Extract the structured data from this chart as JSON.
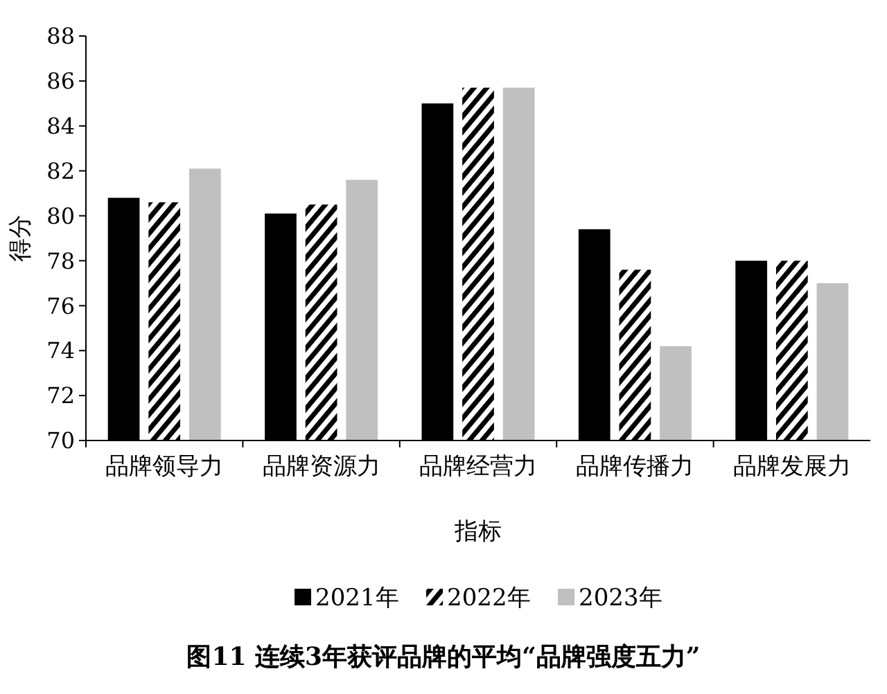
{
  "chart_data": {
    "type": "bar",
    "title": "图11 连续3年获评品牌的平均“品牌强度五力”",
    "xlabel": "指标",
    "ylabel": "得分",
    "categories": [
      "品牌领导力",
      "品牌资源力",
      "品牌经营力",
      "品牌传播力",
      "品牌发展力"
    ],
    "series": [
      {
        "name": "2021年",
        "color": "#000000",
        "values": [
          80.8,
          80.1,
          85.0,
          79.4,
          78.0
        ]
      },
      {
        "name": "2022年",
        "color": "#000000",
        "values": [
          80.6,
          80.5,
          85.7,
          77.6,
          78.0
        ]
      },
      {
        "name": "2023年",
        "color": "#c0c0c0",
        "values": [
          82.1,
          81.6,
          85.7,
          74.2,
          77.0
        ]
      }
    ],
    "ylim": [
      70,
      88
    ],
    "yticks": [
      70,
      72,
      74,
      76,
      78,
      80,
      82,
      84,
      86,
      88
    ],
    "legend": "bottom"
  }
}
